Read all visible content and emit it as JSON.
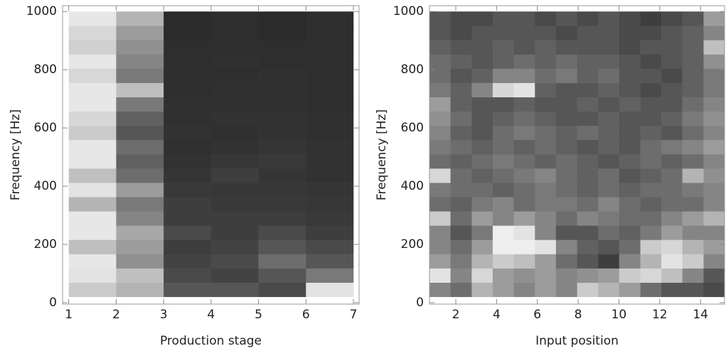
{
  "chart_data": [
    {
      "type": "heatmap",
      "xlabel": "Production stage",
      "ylabel": "Frequency [Hz]",
      "xlim": [
        0.87,
        7.12
      ],
      "ylim": [
        -5,
        1020
      ],
      "xticks": [
        1,
        2,
        3,
        4,
        5,
        6,
        7
      ],
      "yticks": [
        0,
        200,
        400,
        600,
        800,
        1000
      ],
      "x_edges": [
        1,
        2,
        3,
        4,
        5,
        6,
        7
      ],
      "y_edges": [
        20,
        69,
        118,
        167,
        216,
        265,
        314,
        363,
        412,
        461,
        510,
        559,
        608,
        657,
        706,
        755,
        804,
        853,
        902,
        951,
        1000
      ],
      "values": [
        [
          0.8,
          0.7,
          0.3,
          0.3,
          0.25,
          0.9
        ],
        [
          0.9,
          0.75,
          0.25,
          0.22,
          0.3,
          0.45
        ],
        [
          0.92,
          0.55,
          0.22,
          0.25,
          0.4,
          0.3
        ],
        [
          0.75,
          0.6,
          0.2,
          0.22,
          0.3,
          0.25
        ],
        [
          0.92,
          0.65,
          0.25,
          0.2,
          0.25,
          0.2
        ],
        [
          0.92,
          0.5,
          0.2,
          0.2,
          0.2,
          0.18
        ],
        [
          0.7,
          0.45,
          0.2,
          0.18,
          0.18,
          0.17
        ],
        [
          0.9,
          0.6,
          0.18,
          0.17,
          0.17,
          0.16
        ],
        [
          0.75,
          0.4,
          0.16,
          0.2,
          0.16,
          0.15
        ],
        [
          0.92,
          0.35,
          0.15,
          0.17,
          0.18,
          0.15
        ],
        [
          0.92,
          0.4,
          0.14,
          0.15,
          0.16,
          0.15
        ],
        [
          0.8,
          0.3,
          0.15,
          0.14,
          0.15,
          0.14
        ],
        [
          0.85,
          0.35,
          0.14,
          0.15,
          0.15,
          0.14
        ],
        [
          0.92,
          0.45,
          0.14,
          0.14,
          0.14,
          0.13
        ],
        [
          0.92,
          0.75,
          0.13,
          0.14,
          0.14,
          0.13
        ],
        [
          0.85,
          0.45,
          0.13,
          0.13,
          0.14,
          0.13
        ],
        [
          0.92,
          0.5,
          0.13,
          0.14,
          0.13,
          0.13
        ],
        [
          0.82,
          0.55,
          0.13,
          0.13,
          0.13,
          0.13
        ],
        [
          0.85,
          0.6,
          0.12,
          0.13,
          0.12,
          0.13
        ],
        [
          0.92,
          0.7,
          0.12,
          0.13,
          0.12,
          0.13
        ]
      ]
    },
    {
      "type": "heatmap",
      "xlabel": "Input position",
      "ylabel": "Frequency [Hz]",
      "xlim": [
        0.71,
        15.18
      ],
      "ylim": [
        -5,
        1020
      ],
      "xticks": [
        2,
        4,
        6,
        8,
        10,
        12,
        14
      ],
      "yticks": [
        0,
        200,
        400,
        600,
        800,
        1000
      ],
      "x_edges": [
        0.71,
        1.74,
        2.78,
        3.81,
        4.84,
        5.88,
        6.91,
        7.95,
        8.98,
        10.01,
        11.05,
        12.08,
        13.11,
        14.15,
        15.18
      ],
      "y_edges": [
        20,
        69,
        118,
        167,
        216,
        265,
        314,
        363,
        412,
        461,
        510,
        559,
        608,
        657,
        706,
        755,
        804,
        853,
        902,
        951,
        1000
      ],
      "values": [
        [
          0.5,
          0.4,
          0.7,
          0.6,
          0.5,
          0.6,
          0.5,
          0.8,
          0.7,
          0.6,
          0.4,
          0.3,
          0.3,
          0.25
        ],
        [
          0.9,
          0.5,
          0.85,
          0.6,
          0.55,
          0.6,
          0.5,
          0.55,
          0.6,
          0.8,
          0.85,
          0.75,
          0.5,
          0.3
        ],
        [
          0.6,
          0.45,
          0.7,
          0.8,
          0.75,
          0.6,
          0.4,
          0.3,
          0.2,
          0.5,
          0.7,
          0.9,
          0.8,
          0.5
        ],
        [
          0.5,
          0.4,
          0.6,
          0.95,
          0.95,
          0.9,
          0.5,
          0.35,
          0.3,
          0.4,
          0.8,
          0.85,
          0.7,
          0.6
        ],
        [
          0.5,
          0.3,
          0.45,
          0.95,
          0.9,
          0.5,
          0.3,
          0.3,
          0.4,
          0.35,
          0.45,
          0.6,
          0.5,
          0.5
        ],
        [
          0.8,
          0.4,
          0.6,
          0.5,
          0.6,
          0.5,
          0.4,
          0.5,
          0.45,
          0.4,
          0.4,
          0.5,
          0.6,
          0.7
        ],
        [
          0.4,
          0.35,
          0.45,
          0.5,
          0.4,
          0.45,
          0.45,
          0.4,
          0.5,
          0.4,
          0.35,
          0.4,
          0.4,
          0.5
        ],
        [
          0.45,
          0.4,
          0.4,
          0.35,
          0.4,
          0.45,
          0.4,
          0.35,
          0.4,
          0.35,
          0.4,
          0.4,
          0.45,
          0.5
        ],
        [
          0.85,
          0.4,
          0.35,
          0.4,
          0.45,
          0.5,
          0.4,
          0.35,
          0.4,
          0.3,
          0.35,
          0.4,
          0.7,
          0.55
        ],
        [
          0.4,
          0.35,
          0.4,
          0.45,
          0.4,
          0.35,
          0.4,
          0.35,
          0.3,
          0.35,
          0.4,
          0.35,
          0.4,
          0.5
        ],
        [
          0.45,
          0.4,
          0.35,
          0.4,
          0.35,
          0.4,
          0.35,
          0.3,
          0.35,
          0.3,
          0.4,
          0.45,
          0.5,
          0.6
        ],
        [
          0.5,
          0.35,
          0.3,
          0.4,
          0.45,
          0.4,
          0.35,
          0.4,
          0.35,
          0.3,
          0.35,
          0.3,
          0.4,
          0.5
        ],
        [
          0.55,
          0.4,
          0.3,
          0.35,
          0.4,
          0.35,
          0.3,
          0.3,
          0.35,
          0.3,
          0.3,
          0.35,
          0.45,
          0.55
        ],
        [
          0.6,
          0.35,
          0.3,
          0.3,
          0.35,
          0.3,
          0.3,
          0.35,
          0.3,
          0.35,
          0.3,
          0.3,
          0.4,
          0.5
        ],
        [
          0.45,
          0.35,
          0.5,
          0.85,
          0.9,
          0.35,
          0.3,
          0.3,
          0.35,
          0.3,
          0.25,
          0.3,
          0.35,
          0.45
        ],
        [
          0.4,
          0.3,
          0.35,
          0.5,
          0.5,
          0.4,
          0.45,
          0.35,
          0.4,
          0.3,
          0.3,
          0.25,
          0.35,
          0.45
        ],
        [
          0.4,
          0.35,
          0.3,
          0.35,
          0.4,
          0.35,
          0.4,
          0.35,
          0.35,
          0.3,
          0.25,
          0.3,
          0.35,
          0.55
        ],
        [
          0.35,
          0.3,
          0.3,
          0.35,
          0.3,
          0.35,
          0.3,
          0.3,
          0.3,
          0.25,
          0.3,
          0.3,
          0.35,
          0.75
        ],
        [
          0.3,
          0.25,
          0.3,
          0.3,
          0.3,
          0.3,
          0.25,
          0.3,
          0.3,
          0.25,
          0.25,
          0.3,
          0.35,
          0.5
        ],
        [
          0.3,
          0.25,
          0.25,
          0.3,
          0.3,
          0.25,
          0.3,
          0.25,
          0.3,
          0.25,
          0.2,
          0.25,
          0.3,
          0.6
        ]
      ]
    }
  ]
}
